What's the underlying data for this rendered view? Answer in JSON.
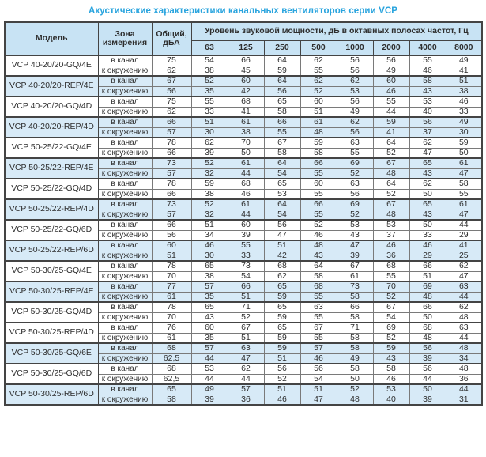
{
  "title": "Акустические характеристики канальных вентиляторов  серии VCP",
  "colors": {
    "title": "#29a4de",
    "header_bg": "#c8e3f4",
    "row_shade": "#d7eaf7",
    "border": "#444444"
  },
  "table": {
    "header": {
      "model": "Модель",
      "zone": "Зона измерения",
      "total": "Общий, дБА",
      "spl_span": "Уровень звуковой мощности, дБ в октавных полосах частот, Гц",
      "frequencies": [
        "63",
        "125",
        "250",
        "500",
        "1000",
        "2000",
        "4000",
        "8000"
      ]
    },
    "zone_labels": [
      "в канал",
      "к окружению"
    ],
    "groups": [
      {
        "model": "VCP 40-20/20-GQ/4E",
        "shaded": false,
        "rows": [
          {
            "zone": "в канал",
            "total": "75",
            "values": [
              54,
              66,
              64,
              62,
              56,
              56,
              55,
              49
            ]
          },
          {
            "zone": "к окружению",
            "total": "62",
            "values": [
              38,
              45,
              59,
              55,
              56,
              49,
              46,
              41
            ]
          }
        ]
      },
      {
        "model": "VCP 40-20/20-REP/4E",
        "shaded": true,
        "rows": [
          {
            "zone": "в канал",
            "total": "67",
            "values": [
              52,
              60,
              64,
              62,
              62,
              60,
              58,
              51
            ]
          },
          {
            "zone": "к окружению",
            "total": "56",
            "values": [
              35,
              42,
              56,
              52,
              53,
              46,
              43,
              38
            ]
          }
        ]
      },
      {
        "model": "VCP 40-20/20-GQ/4D",
        "shaded": false,
        "rows": [
          {
            "zone": "в канал",
            "total": "75",
            "values": [
              55,
              68,
              65,
              60,
              56,
              55,
              53,
              46
            ]
          },
          {
            "zone": "к окружению",
            "total": "62",
            "values": [
              33,
              41,
              58,
              51,
              49,
              44,
              40,
              33
            ]
          }
        ]
      },
      {
        "model": "VCP 40-20/20-REP/4D",
        "shaded": true,
        "rows": [
          {
            "zone": "в канал",
            "total": "66",
            "values": [
              51,
              61,
              66,
              61,
              62,
              59,
              56,
              49
            ]
          },
          {
            "zone": "к окружению",
            "total": "57",
            "values": [
              30,
              38,
              55,
              48,
              56,
              41,
              37,
              30
            ]
          }
        ]
      },
      {
        "model": "VCP 50-25/22-GQ/4E",
        "shaded": false,
        "rows": [
          {
            "zone": "в канал",
            "total": "78",
            "values": [
              62,
              70,
              67,
              59,
              63,
              64,
              62,
              59
            ]
          },
          {
            "zone": "к окружению",
            "total": "66",
            "values": [
              39,
              50,
              58,
              58,
              55,
              52,
              47,
              50
            ]
          }
        ]
      },
      {
        "model": "VCP 50-25/22-REP/4E",
        "shaded": true,
        "rows": [
          {
            "zone": "в канал",
            "total": "73",
            "values": [
              52,
              61,
              64,
              66,
              69,
              67,
              65,
              61
            ]
          },
          {
            "zone": "к окружению",
            "total": "57",
            "values": [
              32,
              44,
              54,
              55,
              52,
              48,
              43,
              47
            ]
          }
        ]
      },
      {
        "model": "VCP 50-25/22-GQ/4D",
        "shaded": false,
        "rows": [
          {
            "zone": "в канал",
            "total": "78",
            "values": [
              59,
              68,
              65,
              60,
              63,
              64,
              62,
              58
            ]
          },
          {
            "zone": "к окружению",
            "total": "66",
            "values": [
              38,
              46,
              53,
              55,
              56,
              52,
              50,
              55
            ]
          }
        ]
      },
      {
        "model": "VCP 50-25/22-REP/4D",
        "shaded": true,
        "rows": [
          {
            "zone": "в канал",
            "total": "73",
            "values": [
              52,
              61,
              64,
              66,
              69,
              67,
              65,
              61
            ]
          },
          {
            "zone": "к окружению",
            "total": "57",
            "values": [
              32,
              44,
              54,
              55,
              52,
              48,
              43,
              47
            ]
          }
        ]
      },
      {
        "model": "VCP 50-25/22-GQ/6D",
        "shaded": false,
        "rows": [
          {
            "zone": "в канал",
            "total": "66",
            "values": [
              51,
              60,
              56,
              52,
              53,
              53,
              50,
              44
            ]
          },
          {
            "zone": "к окружению",
            "total": "56",
            "values": [
              34,
              39,
              47,
              46,
              43,
              37,
              33,
              29
            ]
          }
        ]
      },
      {
        "model": "VCP 50-25/22-REP/6D",
        "shaded": true,
        "rows": [
          {
            "zone": "в канал",
            "total": "60",
            "values": [
              46,
              55,
              51,
              48,
              47,
              46,
              46,
              41
            ]
          },
          {
            "zone": "к окружению",
            "total": "51",
            "values": [
              30,
              33,
              42,
              43,
              39,
              36,
              29,
              25
            ]
          }
        ]
      },
      {
        "model": "VCP 50-30/25-GQ/4E",
        "shaded": false,
        "rows": [
          {
            "zone": "в канал",
            "total": "78",
            "values": [
              65,
              73,
              68,
              64,
              67,
              68,
              66,
              62
            ]
          },
          {
            "zone": "к окружению",
            "total": "70",
            "values": [
              38,
              54,
              62,
              58,
              61,
              55,
              51,
              47
            ]
          }
        ]
      },
      {
        "model": "VCP 50-30/25-REP/4E",
        "shaded": true,
        "rows": [
          {
            "zone": "в канал",
            "total": "77",
            "values": [
              57,
              66,
              65,
              68,
              73,
              70,
              69,
              63
            ]
          },
          {
            "zone": "к окружению",
            "total": "61",
            "values": [
              35,
              51,
              59,
              55,
              58,
              52,
              48,
              44
            ]
          }
        ]
      },
      {
        "model": "VCP 50-30/25-GQ/4D",
        "shaded": false,
        "rows": [
          {
            "zone": "в канал",
            "total": "78",
            "values": [
              65,
              71,
              65,
              63,
              66,
              67,
              66,
              62
            ]
          },
          {
            "zone": "к окружению",
            "total": "70",
            "values": [
              43,
              52,
              59,
              55,
              58,
              54,
              50,
              48
            ]
          }
        ]
      },
      {
        "model": "VCP 50-30/25-REP/4D",
        "shaded": false,
        "rows": [
          {
            "zone": "в канал",
            "total": "76",
            "values": [
              60,
              67,
              65,
              67,
              71,
              69,
              68,
              63
            ]
          },
          {
            "zone": "к окружению",
            "total": "61",
            "values": [
              35,
              51,
              59,
              55,
              58,
              52,
              48,
              44
            ]
          }
        ]
      },
      {
        "model": "VCP 50-30/25-GQ/6E",
        "shaded": true,
        "rows": [
          {
            "zone": "в канал",
            "total": "68",
            "values": [
              57,
              63,
              59,
              57,
              58,
              59,
              56,
              48
            ]
          },
          {
            "zone": "к окружению",
            "total": "62,5",
            "values": [
              44,
              47,
              51,
              46,
              49,
              43,
              39,
              34
            ]
          }
        ]
      },
      {
        "model": "VCP 50-30/25-GQ/6D",
        "shaded": false,
        "rows": [
          {
            "zone": "в канал",
            "total": "68",
            "values": [
              53,
              62,
              56,
              56,
              58,
              58,
              56,
              48
            ]
          },
          {
            "zone": "к окружению",
            "total": "62,5",
            "values": [
              44,
              44,
              52,
              54,
              50,
              46,
              44,
              36
            ]
          }
        ]
      },
      {
        "model": "VCP 50-30/25-REP/6D",
        "shaded": true,
        "rows": [
          {
            "zone": "в канал",
            "total": "65",
            "values": [
              49,
              57,
              51,
              51,
              52,
              53,
              50,
              44
            ]
          },
          {
            "zone": "к окружению",
            "total": "58",
            "values": [
              39,
              36,
              46,
              47,
              48,
              40,
              39,
              31
            ]
          }
        ]
      }
    ]
  }
}
